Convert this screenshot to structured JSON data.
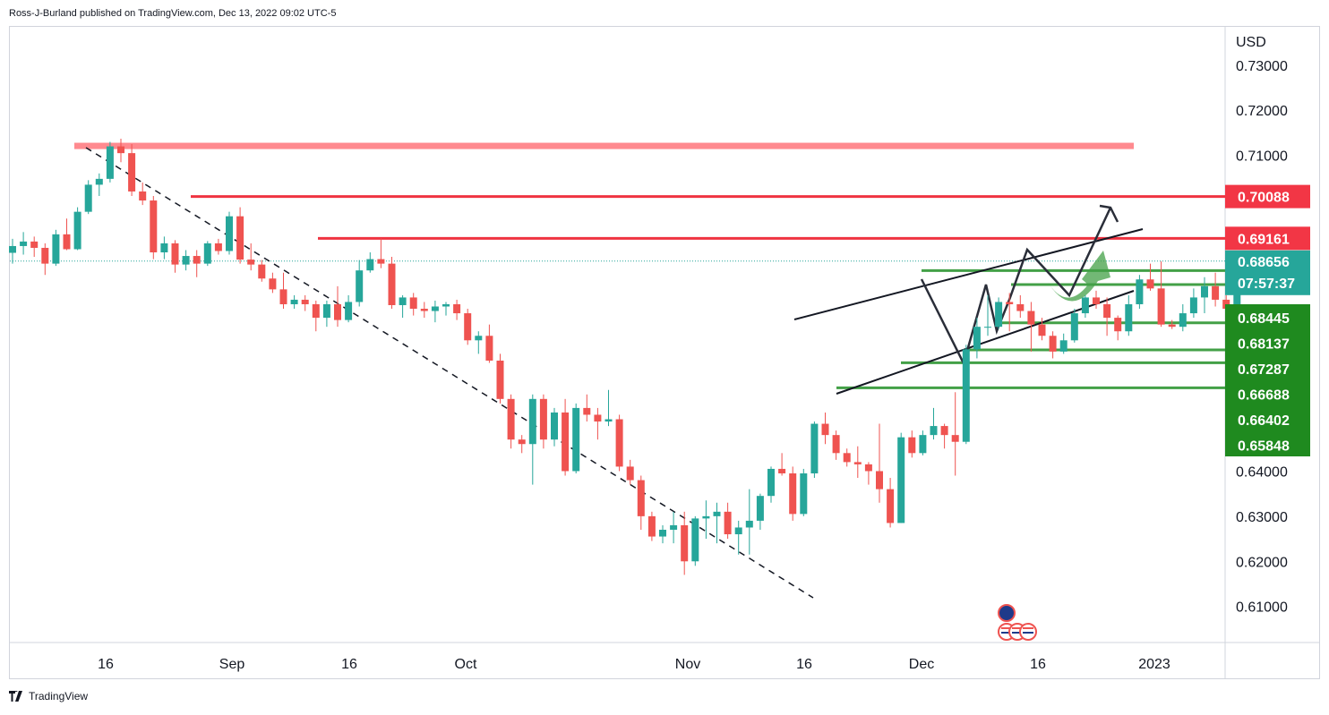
{
  "header": {
    "text": "Ross-J-Burland published on TradingView.com, Dec 13, 2022 09:02 UTC-5"
  },
  "footer": {
    "brand": "TradingView"
  },
  "colors": {
    "up": "#26a69a",
    "down": "#ef5350",
    "resistance": "#ef3340",
    "support": "#43a047",
    "zone": "#ff8a8f"
  },
  "chart_data": {
    "type": "candlestick",
    "title": "",
    "currency_label": "USD",
    "ylim": [
      0.602,
      0.7385
    ],
    "y_ticks": [
      "0.73000",
      "0.72000",
      "0.71000",
      "0.64000",
      "0.63000",
      "0.62000",
      "0.61000"
    ],
    "x_ticks": [
      "16",
      "Sep",
      "16",
      "Oct",
      "Nov",
      "16",
      "Dec",
      "16",
      "2023"
    ],
    "candles": [
      [
        0.6884,
        0.6915,
        0.686,
        0.6899
      ],
      [
        0.6899,
        0.693,
        0.688,
        0.6909
      ],
      [
        0.6909,
        0.692,
        0.6875,
        0.6895
      ],
      [
        0.6895,
        0.6905,
        0.6835,
        0.686
      ],
      [
        0.686,
        0.6935,
        0.6855,
        0.6925
      ],
      [
        0.6925,
        0.696,
        0.689,
        0.6892
      ],
      [
        0.6892,
        0.6985,
        0.689,
        0.6975
      ],
      [
        0.6975,
        0.7045,
        0.697,
        0.7035
      ],
      [
        0.7035,
        0.706,
        0.701,
        0.7048
      ],
      [
        0.7048,
        0.713,
        0.704,
        0.712
      ],
      [
        0.712,
        0.7137,
        0.7085,
        0.7105
      ],
      [
        0.7105,
        0.7125,
        0.701,
        0.702
      ],
      [
        0.702,
        0.704,
        0.699,
        0.7
      ],
      [
        0.7,
        0.701,
        0.687,
        0.6885
      ],
      [
        0.6885,
        0.692,
        0.687,
        0.6905
      ],
      [
        0.6905,
        0.6912,
        0.684,
        0.6858
      ],
      [
        0.6858,
        0.689,
        0.6845,
        0.6877
      ],
      [
        0.6877,
        0.689,
        0.683,
        0.686
      ],
      [
        0.686,
        0.691,
        0.6855,
        0.6905
      ],
      [
        0.6905,
        0.6915,
        0.688,
        0.6888
      ],
      [
        0.6888,
        0.6975,
        0.688,
        0.6965
      ],
      [
        0.6965,
        0.6985,
        0.686,
        0.6869
      ],
      [
        0.6869,
        0.6905,
        0.6845,
        0.6858
      ],
      [
        0.6858,
        0.6868,
        0.682,
        0.6827
      ],
      [
        0.6827,
        0.684,
        0.6795,
        0.6803
      ],
      [
        0.6803,
        0.684,
        0.676,
        0.677
      ],
      [
        0.677,
        0.679,
        0.676,
        0.678
      ],
      [
        0.678,
        0.679,
        0.6755,
        0.677
      ],
      [
        0.677,
        0.6778,
        0.671,
        0.674
      ],
      [
        0.674,
        0.6778,
        0.672,
        0.677
      ],
      [
        0.677,
        0.681,
        0.672,
        0.6735
      ],
      [
        0.6735,
        0.679,
        0.673,
        0.6775
      ],
      [
        0.6775,
        0.6868,
        0.6765,
        0.6845
      ],
      [
        0.6845,
        0.6885,
        0.684,
        0.687
      ],
      [
        0.687,
        0.6916,
        0.685,
        0.686
      ],
      [
        0.686,
        0.6875,
        0.676,
        0.6768
      ],
      [
        0.6768,
        0.679,
        0.674,
        0.6785
      ],
      [
        0.6785,
        0.6795,
        0.6745,
        0.676
      ],
      [
        0.676,
        0.6775,
        0.674,
        0.6755
      ],
      [
        0.6755,
        0.6778,
        0.673,
        0.6765
      ],
      [
        0.6765,
        0.6775,
        0.6745,
        0.677
      ],
      [
        0.677,
        0.678,
        0.6735,
        0.675
      ],
      [
        0.675,
        0.676,
        0.668,
        0.669
      ],
      [
        0.669,
        0.671,
        0.666,
        0.67
      ],
      [
        0.67,
        0.6725,
        0.664,
        0.6645
      ],
      [
        0.6645,
        0.666,
        0.655,
        0.656
      ],
      [
        0.656,
        0.657,
        0.645,
        0.647
      ],
      [
        0.647,
        0.648,
        0.644,
        0.646
      ],
      [
        0.646,
        0.657,
        0.637,
        0.656
      ],
      [
        0.656,
        0.657,
        0.645,
        0.647
      ],
      [
        0.647,
        0.654,
        0.6455,
        0.653
      ],
      [
        0.653,
        0.656,
        0.639,
        0.64
      ],
      [
        0.64,
        0.655,
        0.6395,
        0.654
      ],
      [
        0.654,
        0.657,
        0.651,
        0.6525
      ],
      [
        0.6525,
        0.654,
        0.647,
        0.651
      ],
      [
        0.651,
        0.658,
        0.65,
        0.6515
      ],
      [
        0.6515,
        0.6525,
        0.64,
        0.641
      ],
      [
        0.641,
        0.6425,
        0.637,
        0.638
      ],
      [
        0.638,
        0.639,
        0.627,
        0.63
      ],
      [
        0.63,
        0.631,
        0.6245,
        0.6255
      ],
      [
        0.6255,
        0.628,
        0.624,
        0.627
      ],
      [
        0.627,
        0.631,
        0.624,
        0.628
      ],
      [
        0.628,
        0.631,
        0.617,
        0.62
      ],
      [
        0.62,
        0.63,
        0.619,
        0.6295
      ],
      [
        0.6295,
        0.6335,
        0.625,
        0.63
      ],
      [
        0.63,
        0.633,
        0.624,
        0.631
      ],
      [
        0.631,
        0.633,
        0.625,
        0.626
      ],
      [
        0.626,
        0.629,
        0.6215,
        0.6275
      ],
      [
        0.6275,
        0.636,
        0.6215,
        0.629
      ],
      [
        0.629,
        0.635,
        0.627,
        0.6345
      ],
      [
        0.6345,
        0.641,
        0.633,
        0.6405
      ],
      [
        0.6405,
        0.644,
        0.639,
        0.6395
      ],
      [
        0.6395,
        0.641,
        0.629,
        0.6305
      ],
      [
        0.6305,
        0.6405,
        0.63,
        0.6395
      ],
      [
        0.6395,
        0.651,
        0.6385,
        0.6505
      ],
      [
        0.6505,
        0.653,
        0.646,
        0.648
      ],
      [
        0.648,
        0.649,
        0.6425,
        0.644
      ],
      [
        0.644,
        0.645,
        0.641,
        0.642
      ],
      [
        0.642,
        0.6455,
        0.6385,
        0.6415
      ],
      [
        0.6415,
        0.642,
        0.637,
        0.64
      ],
      [
        0.64,
        0.6505,
        0.633,
        0.636
      ],
      [
        0.636,
        0.6385,
        0.6275,
        0.6285
      ],
      [
        0.6285,
        0.6485,
        0.6285,
        0.6475
      ],
      [
        0.6475,
        0.649,
        0.643,
        0.644
      ],
      [
        0.644,
        0.649,
        0.6435,
        0.648
      ],
      [
        0.648,
        0.654,
        0.647,
        0.65
      ],
      [
        0.65,
        0.6505,
        0.645,
        0.648
      ],
      [
        0.648,
        0.6575,
        0.639,
        0.6465
      ],
      [
        0.6465,
        0.668,
        0.646,
        0.667
      ],
      [
        0.667,
        0.674,
        0.665,
        0.672
      ],
      [
        0.672,
        0.679,
        0.67,
        0.672
      ],
      [
        0.672,
        0.6785,
        0.6715,
        0.6775
      ],
      [
        0.6775,
        0.6795,
        0.671,
        0.677
      ],
      [
        0.677,
        0.679,
        0.674,
        0.6755
      ],
      [
        0.6755,
        0.6775,
        0.6665,
        0.6725
      ],
      [
        0.6725,
        0.674,
        0.669,
        0.67
      ],
      [
        0.67,
        0.671,
        0.665,
        0.6665
      ],
      [
        0.6665,
        0.6705,
        0.666,
        0.669
      ],
      [
        0.669,
        0.676,
        0.6685,
        0.675
      ],
      [
        0.675,
        0.679,
        0.674,
        0.6785
      ],
      [
        0.6785,
        0.68,
        0.676,
        0.677
      ],
      [
        0.677,
        0.6785,
        0.67,
        0.674
      ],
      [
        0.674,
        0.6745,
        0.669,
        0.671
      ],
      [
        0.671,
        0.679,
        0.67,
        0.677
      ],
      [
        0.677,
        0.6835,
        0.676,
        0.6825
      ],
      [
        0.6825,
        0.686,
        0.68,
        0.6805
      ],
      [
        0.6805,
        0.6865,
        0.672,
        0.6725
      ],
      [
        0.6725,
        0.6735,
        0.6715,
        0.672
      ],
      [
        0.672,
        0.677,
        0.671,
        0.675
      ],
      [
        0.675,
        0.6805,
        0.674,
        0.6785
      ],
      [
        0.6785,
        0.683,
        0.675,
        0.681
      ],
      [
        0.681,
        0.684,
        0.6765,
        0.678
      ],
      [
        0.678,
        0.679,
        0.675,
        0.676
      ],
      [
        0.676,
        0.688,
        0.6755,
        0.6865
      ]
    ],
    "resistance_zone": {
      "low": 0.7114,
      "high": 0.7128
    },
    "resistance_levels": [
      0.70088,
      0.69161
    ],
    "support_levels": [
      0.68445,
      0.68137,
      0.67287,
      0.66688,
      0.66402,
      0.65848
    ],
    "current": {
      "price": "0.68656",
      "countdown": "07:57:37"
    },
    "price_labels": {
      "red": [
        "0.70088",
        "0.69161"
      ],
      "green": [
        "0.68445",
        "0.68137",
        "0.67287",
        "0.66688",
        "0.66402",
        "0.65848"
      ]
    }
  }
}
